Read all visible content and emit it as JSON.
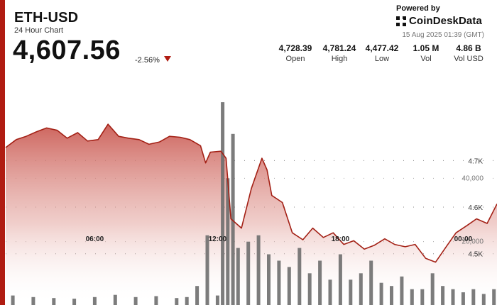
{
  "header": {
    "symbol": "ETH-USD",
    "subtitle": "24 Hour Chart",
    "price": "4,607.56",
    "change": "-2.56%"
  },
  "branding": {
    "powered_by": "Powered by",
    "name": "CoinDeskData",
    "timestamp": "15 Aug 2025 01:39 (GMT)"
  },
  "stats": [
    {
      "value": "4,728.39",
      "label": "Open"
    },
    {
      "value": "4,781.24",
      "label": "High"
    },
    {
      "value": "4,477.42",
      "label": "Low"
    },
    {
      "value": "1.05 M",
      "label": "Vol"
    },
    {
      "value": "4.86 B",
      "label": "Vol USD"
    }
  ],
  "colors": {
    "accent": "#b01c12",
    "line": "#a32015",
    "area_top": "#c9574f",
    "volume_bar": "#6e6e6e"
  },
  "chart_data": {
    "type": "area",
    "x_domain": [
      "2025-08-14T01:39",
      "2025-08-15T01:39"
    ],
    "x_ticks": [
      {
        "label": "06:00",
        "t": "2025-08-14T06:00"
      },
      {
        "label": "12:00",
        "t": "2025-08-14T12:00"
      },
      {
        "label": "18:00",
        "t": "2025-08-14T18:00"
      },
      {
        "label": "00:00",
        "t": "2025-08-15T00:00"
      }
    ],
    "price_axis": {
      "ticks": [
        4500,
        4600,
        4700
      ],
      "tick_labels": [
        "4.5K",
        "4.6K",
        "4.7K"
      ],
      "range": [
        4390,
        4900
      ]
    },
    "volume_axis": {
      "ticks": [
        20000,
        40000
      ],
      "tick_labels": [
        "20,000",
        "40,000"
      ],
      "range": [
        0,
        75000
      ]
    },
    "grid": "dotted horizontal",
    "price": {
      "times": [
        "2025-08-14T01:39",
        "2025-08-14T02:10",
        "2025-08-14T02:39",
        "2025-08-14T03:10",
        "2025-08-14T03:39",
        "2025-08-14T04:10",
        "2025-08-14T04:39",
        "2025-08-14T05:10",
        "2025-08-14T05:39",
        "2025-08-14T06:10",
        "2025-08-14T06:39",
        "2025-08-14T07:10",
        "2025-08-14T07:39",
        "2025-08-14T08:10",
        "2025-08-14T08:39",
        "2025-08-14T09:10",
        "2025-08-14T09:39",
        "2025-08-14T10:10",
        "2025-08-14T10:39",
        "2025-08-14T11:10",
        "2025-08-14T11:25",
        "2025-08-14T11:39",
        "2025-08-14T12:10",
        "2025-08-14T12:25",
        "2025-08-14T12:39",
        "2025-08-14T13:10",
        "2025-08-14T13:39",
        "2025-08-14T14:10",
        "2025-08-14T14:25",
        "2025-08-14T14:39",
        "2025-08-14T15:10",
        "2025-08-14T15:39",
        "2025-08-14T16:10",
        "2025-08-14T16:39",
        "2025-08-14T17:10",
        "2025-08-14T17:39",
        "2025-08-14T18:10",
        "2025-08-14T18:39",
        "2025-08-14T19:10",
        "2025-08-14T19:39",
        "2025-08-14T20:10",
        "2025-08-14T20:39",
        "2025-08-14T21:10",
        "2025-08-14T21:39",
        "2025-08-14T22:10",
        "2025-08-14T22:39",
        "2025-08-14T23:10",
        "2025-08-14T23:39",
        "2025-08-15T00:10",
        "2025-08-15T00:39",
        "2025-08-15T01:10",
        "2025-08-15T01:39"
      ],
      "values": [
        4728,
        4745,
        4752,
        4762,
        4770,
        4765,
        4748,
        4760,
        4742,
        4745,
        4778,
        4752,
        4748,
        4745,
        4735,
        4740,
        4752,
        4750,
        4745,
        4732,
        4695,
        4718,
        4720,
        4705,
        4575,
        4555,
        4640,
        4705,
        4680,
        4625,
        4610,
        4545,
        4530,
        4555,
        4535,
        4545,
        4520,
        4528,
        4510,
        4518,
        4532,
        4520,
        4515,
        4520,
        4490,
        4482,
        4515,
        4545,
        4560,
        4575,
        4565,
        4607
      ]
    },
    "volume": {
      "times": [
        "2025-08-14T02:00",
        "2025-08-14T03:00",
        "2025-08-14T04:00",
        "2025-08-14T05:00",
        "2025-08-14T06:00",
        "2025-08-14T07:00",
        "2025-08-14T08:00",
        "2025-08-14T09:00",
        "2025-08-14T10:00",
        "2025-08-14T10:30",
        "2025-08-14T11:00",
        "2025-08-14T11:30",
        "2025-08-14T12:00",
        "2025-08-14T12:15",
        "2025-08-14T12:30",
        "2025-08-14T12:45",
        "2025-08-14T13:00",
        "2025-08-14T13:30",
        "2025-08-14T14:00",
        "2025-08-14T14:30",
        "2025-08-14T15:00",
        "2025-08-14T15:30",
        "2025-08-14T16:00",
        "2025-08-14T16:30",
        "2025-08-14T17:00",
        "2025-08-14T17:30",
        "2025-08-14T18:00",
        "2025-08-14T18:30",
        "2025-08-14T19:00",
        "2025-08-14T19:30",
        "2025-08-14T20:00",
        "2025-08-14T20:30",
        "2025-08-14T21:00",
        "2025-08-14T21:30",
        "2025-08-14T22:00",
        "2025-08-14T22:30",
        "2025-08-14T23:00",
        "2025-08-14T23:30",
        "2025-08-15T00:00",
        "2025-08-15T00:30",
        "2025-08-15T01:00",
        "2025-08-15T01:30"
      ],
      "values": [
        3000,
        2500,
        2200,
        2000,
        2500,
        3200,
        2500,
        2800,
        2200,
        2500,
        6000,
        22000,
        3000,
        64000,
        40000,
        54000,
        18000,
        20000,
        22000,
        16000,
        14000,
        12000,
        18000,
        10000,
        14000,
        8000,
        16000,
        8000,
        10000,
        14000,
        7000,
        6000,
        9000,
        5000,
        5000,
        10000,
        6000,
        5000,
        4000,
        5000,
        3500,
        5000
      ]
    }
  }
}
